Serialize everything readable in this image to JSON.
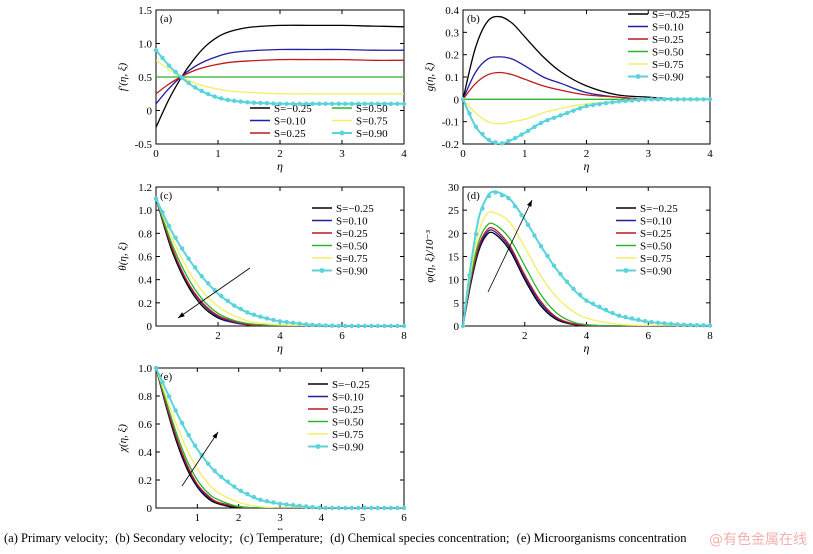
{
  "caption": {
    "items": [
      "(a)  Primary  velocity;",
      "(b)  Secondary velocity;",
      "(c) Temperature;",
      "(d) Chemical species concentration;",
      "(e) Microorganisms concentration"
    ]
  },
  "watermark": "@有色金属在线",
  "colors": {
    "s_m025": "#000000",
    "s_010": "#1f1fa8",
    "s_025": "#c01a1a",
    "s_050": "#2ab52a",
    "s_075": "#f0f060",
    "s_090": "#5ad3dd"
  },
  "chart_data": [
    {
      "type": "line",
      "panel": "(a)",
      "xlabel": "η",
      "ylabel": "f′(η, ξ)",
      "xlim": [
        0,
        4
      ],
      "ylim": [
        -0.5,
        1.5
      ],
      "xticks": [
        "0",
        "1",
        "2",
        "3",
        "4"
      ],
      "yticks": [
        "-0.5",
        "0",
        "0.5",
        "1.0",
        "1.5"
      ],
      "legend": "bottom, two columns",
      "x": [
        0,
        0.2,
        0.4,
        0.6,
        0.8,
        1.0,
        1.2,
        1.5,
        2.0,
        2.5,
        3.0,
        3.5,
        4.0
      ],
      "series": [
        {
          "name": "S=−0.25",
          "values": [
            -0.25,
            0.15,
            0.48,
            0.75,
            0.96,
            1.1,
            1.18,
            1.24,
            1.27,
            1.27,
            1.27,
            1.26,
            1.25
          ]
        },
        {
          "name": "S=0.10",
          "values": [
            0.1,
            0.32,
            0.5,
            0.64,
            0.74,
            0.81,
            0.86,
            0.89,
            0.91,
            0.91,
            0.91,
            0.9,
            0.9
          ]
        },
        {
          "name": "S=0.25",
          "values": [
            0.25,
            0.39,
            0.5,
            0.59,
            0.65,
            0.69,
            0.72,
            0.74,
            0.76,
            0.76,
            0.76,
            0.75,
            0.75
          ]
        },
        {
          "name": "S=0.50",
          "values": [
            0.5,
            0.5,
            0.5,
            0.5,
            0.5,
            0.5,
            0.5,
            0.5,
            0.5,
            0.5,
            0.5,
            0.5,
            0.5
          ]
        },
        {
          "name": "S=0.75",
          "values": [
            0.75,
            0.62,
            0.5,
            0.42,
            0.36,
            0.32,
            0.29,
            0.27,
            0.25,
            0.25,
            0.25,
            0.25,
            0.25
          ]
        },
        {
          "name": "S=0.90",
          "values": [
            0.9,
            0.68,
            0.5,
            0.36,
            0.26,
            0.19,
            0.15,
            0.12,
            0.1,
            0.1,
            0.1,
            0.1,
            0.1
          ]
        }
      ]
    },
    {
      "type": "line",
      "panel": "(b)",
      "xlabel": "η",
      "ylabel": "g(η, ξ)",
      "xlim": [
        0,
        4
      ],
      "ylim": [
        -0.2,
        0.4
      ],
      "xticks": [
        "0",
        "1",
        "2",
        "3",
        "4"
      ],
      "yticks": [
        "-0.2",
        "-0.1",
        "0",
        "0.1",
        "0.2",
        "0.3",
        "0.4"
      ],
      "legend": "top-right",
      "x": [
        0,
        0.2,
        0.4,
        0.6,
        0.8,
        1.0,
        1.3,
        1.6,
        2.0,
        2.5,
        3.0,
        3.5,
        4.0
      ],
      "series": [
        {
          "name": "S=−0.25",
          "values": [
            0,
            0.23,
            0.35,
            0.37,
            0.34,
            0.28,
            0.19,
            0.12,
            0.06,
            0.02,
            0.01,
            0.0,
            0.0
          ]
        },
        {
          "name": "S=0.10",
          "values": [
            0,
            0.12,
            0.18,
            0.19,
            0.18,
            0.15,
            0.1,
            0.07,
            0.03,
            0.01,
            0.0,
            0.0,
            0.0
          ]
        },
        {
          "name": "S=0.25",
          "values": [
            0,
            0.07,
            0.11,
            0.12,
            0.11,
            0.09,
            0.06,
            0.04,
            0.02,
            0.01,
            0.0,
            0.0,
            0.0
          ]
        },
        {
          "name": "S=0.50",
          "values": [
            0,
            0,
            0,
            0,
            0,
            0,
            0,
            0,
            0,
            0,
            0,
            0,
            0
          ]
        },
        {
          "name": "S=0.75",
          "values": [
            0,
            -0.06,
            -0.1,
            -0.11,
            -0.1,
            -0.09,
            -0.06,
            -0.04,
            -0.02,
            -0.01,
            0.0,
            0.0,
            0.0
          ]
        },
        {
          "name": "S=0.90",
          "values": [
            0,
            -0.12,
            -0.18,
            -0.2,
            -0.18,
            -0.15,
            -0.1,
            -0.07,
            -0.03,
            -0.01,
            0.0,
            0.0,
            0.0
          ]
        }
      ]
    },
    {
      "type": "line",
      "panel": "(c)",
      "xlabel": "η",
      "ylabel": "θ(η, ξ)",
      "xlim": [
        0,
        8
      ],
      "ylim": [
        0,
        1.2
      ],
      "xticks": [
        "2",
        "4",
        "6",
        "8"
      ],
      "yticks": [
        "0",
        "0.2",
        "0.4",
        "0.6",
        "0.8",
        "1.0",
        "1.2"
      ],
      "legend": "top-right",
      "x": [
        0,
        0.5,
        1,
        1.5,
        2,
        2.5,
        3,
        3.5,
        4,
        5,
        6,
        7,
        8
      ],
      "series": [
        {
          "name": "S=−0.25",
          "values": [
            1.1,
            0.66,
            0.36,
            0.17,
            0.07,
            0.03,
            0.01,
            0.0,
            0.0,
            0.0,
            0.0,
            0.0,
            0.0
          ]
        },
        {
          "name": "S=0.10",
          "values": [
            1.1,
            0.68,
            0.38,
            0.19,
            0.08,
            0.03,
            0.01,
            0.0,
            0.0,
            0.0,
            0.0,
            0.0,
            0.0
          ]
        },
        {
          "name": "S=0.25",
          "values": [
            1.1,
            0.69,
            0.39,
            0.2,
            0.09,
            0.04,
            0.01,
            0.0,
            0.0,
            0.0,
            0.0,
            0.0,
            0.0
          ]
        },
        {
          "name": "S=0.50",
          "values": [
            1.1,
            0.72,
            0.43,
            0.23,
            0.11,
            0.05,
            0.02,
            0.01,
            0.0,
            0.0,
            0.0,
            0.0,
            0.0
          ]
        },
        {
          "name": "S=0.75",
          "values": [
            1.1,
            0.77,
            0.5,
            0.3,
            0.17,
            0.09,
            0.04,
            0.02,
            0.01,
            0.0,
            0.0,
            0.0,
            0.0
          ]
        },
        {
          "name": "S=0.90",
          "values": [
            1.1,
            0.82,
            0.6,
            0.42,
            0.28,
            0.18,
            0.11,
            0.07,
            0.04,
            0.01,
            0.0,
            0.0,
            0.0
          ]
        }
      ]
    },
    {
      "type": "line",
      "panel": "(d)",
      "xlabel": "η",
      "ylabel": "φ(η, ξ)/10⁻³",
      "xlim": [
        0,
        8
      ],
      "ylim": [
        0,
        30
      ],
      "xticks": [
        "2",
        "4",
        "6",
        "8"
      ],
      "yticks": [
        "0",
        "5",
        "10",
        "15",
        "20",
        "25",
        "30"
      ],
      "legend": "top-right",
      "x": [
        0,
        0.25,
        0.5,
        0.75,
        1,
        1.5,
        2,
        2.5,
        3,
        3.5,
        4,
        5,
        6,
        7,
        8
      ],
      "series": [
        {
          "name": "S=−0.25",
          "values": [
            0,
            9,
            16,
            19.5,
            20,
            16.5,
            10,
            4.5,
            1.5,
            0.4,
            0.1,
            0,
            0,
            0,
            0
          ]
        },
        {
          "name": "S=0.10",
          "values": [
            0,
            9.5,
            16.5,
            20,
            20.5,
            17,
            10.5,
            5,
            1.8,
            0.5,
            0.1,
            0,
            0,
            0,
            0
          ]
        },
        {
          "name": "S=0.25",
          "values": [
            0,
            9.8,
            17,
            20.5,
            21,
            17.5,
            11,
            5.5,
            2,
            0.6,
            0.2,
            0,
            0,
            0,
            0
          ]
        },
        {
          "name": "S=0.50",
          "values": [
            0,
            10.5,
            18,
            21.5,
            22,
            19,
            13,
            7,
            3,
            1,
            0.3,
            0,
            0,
            0,
            0
          ]
        },
        {
          "name": "S=0.75",
          "values": [
            0,
            11.5,
            20,
            24,
            24.5,
            22.5,
            17,
            11,
            6.5,
            3.5,
            1.7,
            0.4,
            0.1,
            0,
            0
          ]
        },
        {
          "name": "S=0.90",
          "values": [
            0,
            13,
            23,
            27.5,
            29,
            27.5,
            23,
            17.5,
            12.5,
            8.5,
            5.5,
            2.3,
            0.9,
            0.3,
            0.1
          ]
        }
      ]
    },
    {
      "type": "line",
      "panel": "(e)",
      "xlabel": "η",
      "ylabel": "χ(η, ξ)",
      "xlim": [
        0,
        6
      ],
      "ylim": [
        0,
        1.0
      ],
      "xticks": [
        "1",
        "2",
        "3",
        "4",
        "5",
        "6"
      ],
      "yticks": [
        "0",
        "0.2",
        "0.4",
        "0.6",
        "0.8",
        "1.0"
      ],
      "legend": "top-right",
      "x": [
        0,
        0.25,
        0.5,
        0.75,
        1,
        1.25,
        1.5,
        2,
        2.5,
        3,
        4,
        5,
        6
      ],
      "series": [
        {
          "name": "S=−0.25",
          "values": [
            1.0,
            0.72,
            0.47,
            0.28,
            0.15,
            0.07,
            0.03,
            0.0,
            0.0,
            0.0,
            0.0,
            0.0,
            0.0
          ]
        },
        {
          "name": "S=0.10",
          "values": [
            1.0,
            0.73,
            0.49,
            0.3,
            0.16,
            0.08,
            0.04,
            0.01,
            0.0,
            0.0,
            0.0,
            0.0,
            0.0
          ]
        },
        {
          "name": "S=0.25",
          "values": [
            1.0,
            0.74,
            0.5,
            0.31,
            0.17,
            0.09,
            0.04,
            0.01,
            0.0,
            0.0,
            0.0,
            0.0,
            0.0
          ]
        },
        {
          "name": "S=0.50",
          "values": [
            1.0,
            0.76,
            0.53,
            0.34,
            0.2,
            0.11,
            0.06,
            0.01,
            0.0,
            0.0,
            0.0,
            0.0,
            0.0
          ]
        },
        {
          "name": "S=0.75",
          "values": [
            1.0,
            0.79,
            0.59,
            0.42,
            0.28,
            0.18,
            0.11,
            0.04,
            0.01,
            0.0,
            0.0,
            0.0,
            0.0
          ]
        },
        {
          "name": "S=0.90",
          "values": [
            1.0,
            0.84,
            0.68,
            0.54,
            0.42,
            0.32,
            0.24,
            0.13,
            0.06,
            0.03,
            0.0,
            0.0,
            0.0
          ]
        }
      ]
    }
  ]
}
